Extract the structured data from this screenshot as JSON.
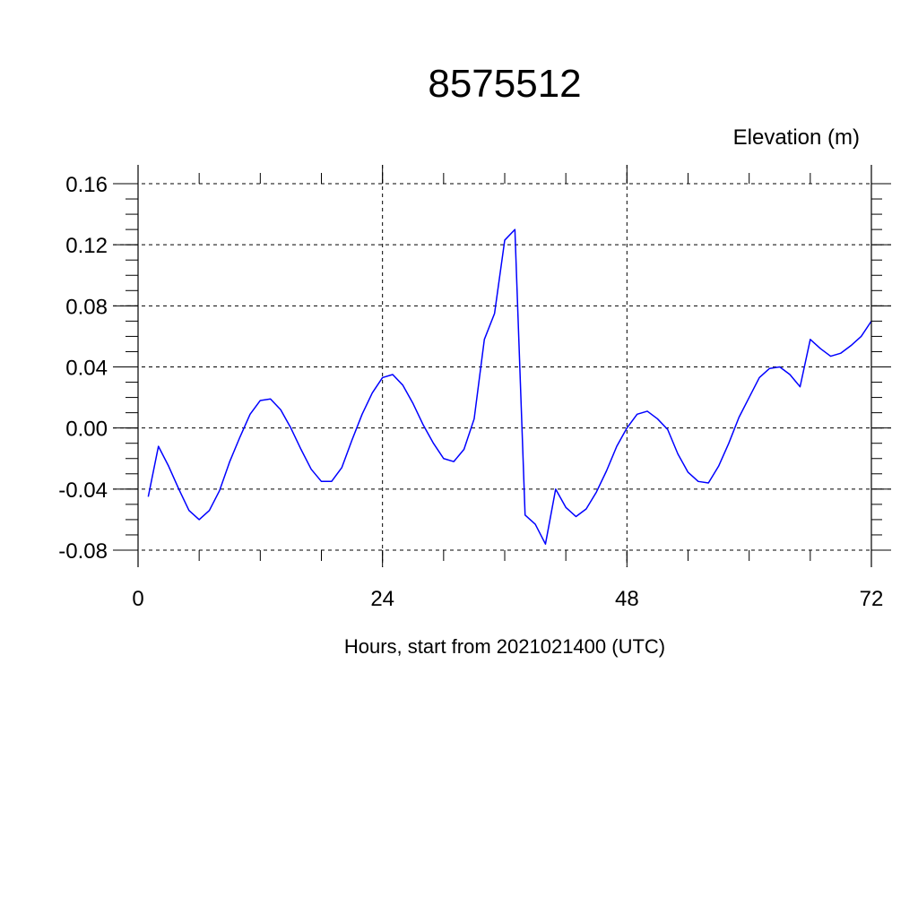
{
  "chart_data": {
    "type": "line",
    "title": "8575512",
    "ylabel": "Elevation (m)",
    "xlabel": "Hours, start from 2021021400 (UTC)",
    "xlim": [
      0,
      72
    ],
    "ylim": [
      -0.08,
      0.16
    ],
    "x_ticks": [
      0,
      24,
      48,
      72
    ],
    "x_tick_labels": [
      "0",
      "24",
      "48",
      "72"
    ],
    "y_ticks": [
      -0.08,
      -0.04,
      0.0,
      0.04,
      0.08,
      0.12,
      0.16
    ],
    "y_tick_labels": [
      "-0.08",
      "-0.04",
      "0.00",
      "0.04",
      "0.08",
      "0.12",
      "0.16"
    ],
    "grid": true,
    "series": [
      {
        "color": "#0000ff",
        "x": [
          1,
          2,
          3,
          4,
          5,
          6,
          7,
          8,
          9,
          10,
          11,
          12,
          13,
          14,
          15,
          16,
          17,
          18,
          19,
          20,
          21,
          22,
          23,
          24,
          25,
          26,
          27,
          28,
          29,
          30,
          31,
          32,
          33,
          34,
          35,
          36,
          37,
          38,
          39,
          40,
          41,
          42,
          43,
          44,
          45,
          46,
          47,
          48,
          49,
          50,
          51,
          52,
          53,
          54,
          55,
          56,
          57,
          58,
          59,
          60,
          61,
          62,
          63,
          64,
          65,
          66,
          67,
          68,
          69,
          70,
          71,
          72
        ],
        "y": [
          -0.045,
          -0.012,
          -0.025,
          -0.04,
          -0.054,
          -0.06,
          -0.054,
          -0.041,
          -0.022,
          -0.006,
          0.009,
          0.018,
          0.019,
          0.012,
          0.0,
          -0.014,
          -0.027,
          -0.035,
          -0.035,
          -0.026,
          -0.008,
          0.009,
          0.023,
          0.033,
          0.035,
          0.028,
          0.016,
          0.002,
          -0.01,
          -0.02,
          -0.022,
          -0.014,
          0.006,
          0.058,
          0.075,
          0.123,
          0.13,
          -0.057,
          -0.063,
          -0.076,
          -0.04,
          -0.052,
          -0.058,
          -0.053,
          -0.042,
          -0.028,
          -0.012,
          0.0,
          0.009,
          0.011,
          0.006,
          -0.001,
          -0.017,
          -0.029,
          -0.035,
          -0.036,
          -0.025,
          -0.01,
          0.007,
          0.02,
          0.033,
          0.039,
          0.04,
          0.035,
          0.027,
          0.058,
          0.052,
          0.047,
          0.049,
          0.054,
          0.06,
          0.07
        ]
      }
    ]
  }
}
